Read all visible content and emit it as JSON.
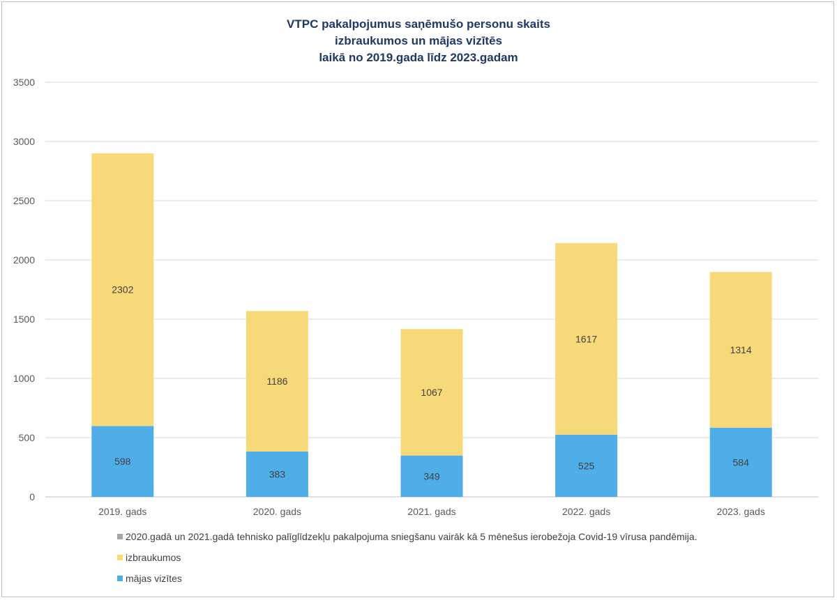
{
  "chart_data": {
    "type": "bar",
    "stacked": true,
    "title_lines": [
      "VTPC pakalpojumus saņēmušo personu skaits",
      "izbraukumos un mājas vizītēs",
      "laikā no 2019.gada līdz 2023.gadam"
    ],
    "categories": [
      "2019. gads",
      "2020. gads",
      "2021. gads",
      "2022. gads",
      "2023. gads"
    ],
    "series": [
      {
        "name": "mājas vizītes",
        "color": "#4faee8",
        "values": [
          598,
          383,
          349,
          525,
          584
        ]
      },
      {
        "name": "izbraukumos",
        "color": "#f7d97a",
        "values": [
          2302,
          1186,
          1067,
          1617,
          1314
        ]
      }
    ],
    "ylim": [
      0,
      3500
    ],
    "yticks": [
      0,
      500,
      1000,
      1500,
      2000,
      2500,
      3000,
      3500
    ],
    "grid": true,
    "legend_position": "bottom",
    "legend": [
      {
        "label": "2020.gadā un 2021.gadā tehnisko palīglīdzekļu pakalpojuma sniegšanu vairāk kā 5 mēnešus ierobežoja Covid-19 vīrusa pandēmija.",
        "color": "#a6a6a6"
      },
      {
        "label": "izbraukumos",
        "color": "#f7d97a"
      },
      {
        "label": "mājas vizītes",
        "color": "#4faee8"
      }
    ]
  }
}
